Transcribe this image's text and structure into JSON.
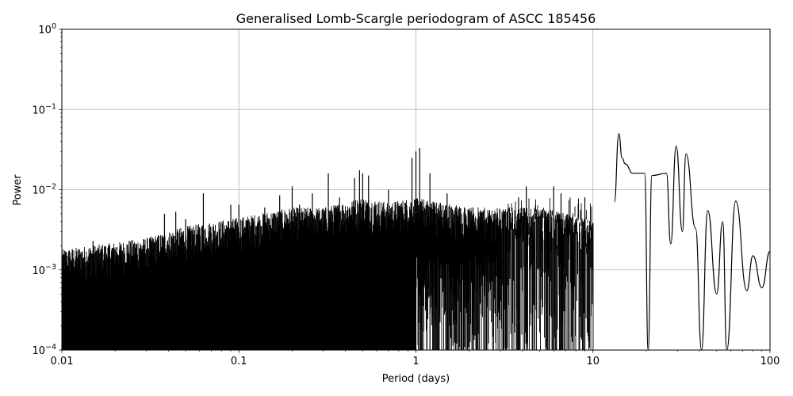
{
  "chart_data": {
    "type": "line",
    "title": "Generalised Lomb-Scargle periodogram of ASCC 185456",
    "xlabel": "Period (days)",
    "ylabel": "Power",
    "xscale": "log",
    "yscale": "log",
    "xlim": [
      0.01,
      100
    ],
    "ylim": [
      0.0001,
      1
    ],
    "grid": true,
    "legend": "none",
    "line_color": "#000000",
    "x_ticks": [
      {
        "value": 0.01,
        "label": "0.01"
      },
      {
        "value": 0.1,
        "label": "0.1"
      },
      {
        "value": 1,
        "label": "1"
      },
      {
        "value": 10,
        "label": "10"
      },
      {
        "value": 100,
        "label": "100"
      }
    ],
    "y_ticks": [
      {
        "value": 0.0001,
        "base": "10",
        "exp": "−4"
      },
      {
        "value": 0.001,
        "base": "10",
        "exp": "−3"
      },
      {
        "value": 0.01,
        "base": "10",
        "exp": "−2"
      },
      {
        "value": 0.1,
        "base": "10",
        "exp": "−1"
      },
      {
        "value": 1,
        "base": "10",
        "exp": "0"
      }
    ],
    "series": [
      {
        "noise_band_approx": {
          "x_range": [
            0.01,
            10
          ],
          "y_floor": 0.0001,
          "y_envelope": [
            [
              0.01,
              0.0018
            ],
            [
              0.02,
              0.0022
            ],
            [
              0.03,
              0.0025
            ],
            [
              0.05,
              0.0035
            ],
            [
              0.1,
              0.0045
            ],
            [
              0.2,
              0.006
            ],
            [
              0.3,
              0.006
            ],
            [
              0.5,
              0.008
            ],
            [
              0.7,
              0.007
            ],
            [
              1.0,
              0.008
            ],
            [
              2.0,
              0.006
            ],
            [
              3.0,
              0.006
            ],
            [
              5.0,
              0.006
            ],
            [
              8.0,
              0.005
            ],
            [
              10.0,
              0.004
            ]
          ]
        },
        "peaks": [
          [
            0.015,
            0.0023
          ],
          [
            0.024,
            0.0023
          ],
          [
            0.038,
            0.005
          ],
          [
            0.044,
            0.0053
          ],
          [
            0.05,
            0.0043
          ],
          [
            0.063,
            0.009
          ],
          [
            0.09,
            0.0065
          ],
          [
            0.1,
            0.0065
          ],
          [
            0.14,
            0.006
          ],
          [
            0.17,
            0.0085
          ],
          [
            0.2,
            0.011
          ],
          [
            0.22,
            0.0065
          ],
          [
            0.26,
            0.009
          ],
          [
            0.32,
            0.016
          ],
          [
            0.37,
            0.008
          ],
          [
            0.45,
            0.014
          ],
          [
            0.48,
            0.0175
          ],
          [
            0.5,
            0.016
          ],
          [
            0.54,
            0.015
          ],
          [
            0.7,
            0.01
          ],
          [
            0.95,
            0.025
          ],
          [
            1.0,
            0.03
          ],
          [
            1.05,
            0.033
          ],
          [
            1.2,
            0.016
          ],
          [
            1.5,
            0.009
          ],
          [
            2.1,
            0.006
          ],
          [
            2.5,
            0.0045
          ],
          [
            3.8,
            0.008
          ],
          [
            4.2,
            0.011
          ],
          [
            6.0,
            0.011
          ],
          [
            6.6,
            0.009
          ],
          [
            9.0,
            0.008
          ],
          [
            13.2,
            0.007
          ],
          [
            14.0,
            0.05
          ],
          [
            14.6,
            0.025
          ],
          [
            15.2,
            0.021
          ],
          [
            16.8,
            0.016
          ],
          [
            19.6,
            0.016
          ],
          [
            21.5,
            0.015
          ],
          [
            26.0,
            0.016
          ],
          [
            29.5,
            0.035
          ],
          [
            33.5,
            0.028
          ],
          [
            38.0,
            0.0033
          ],
          [
            44.5,
            0.0055
          ],
          [
            54.0,
            0.004
          ],
          [
            64.0,
            0.0072
          ],
          [
            80.0,
            0.0015
          ],
          [
            100.0,
            0.0017
          ]
        ],
        "dips": [
          [
            20.5,
            0.0001
          ],
          [
            27.5,
            0.0021
          ],
          [
            32.0,
            0.003
          ],
          [
            41.0,
            0.0001
          ],
          [
            50.0,
            0.0005
          ],
          [
            57.0,
            0.0001
          ],
          [
            74.0,
            0.00055
          ],
          [
            90.0,
            0.0006
          ]
        ]
      }
    ]
  }
}
